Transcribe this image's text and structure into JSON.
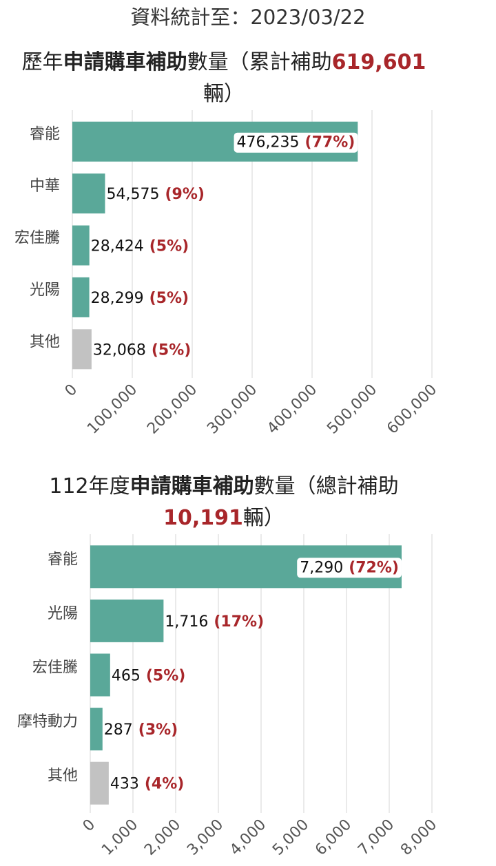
{
  "header": {
    "stats_date": "資料統計至：2023/03/22"
  },
  "chart_data": [
    {
      "type": "bar",
      "orientation": "horizontal",
      "title_parts": [
        {
          "text": "歷年",
          "style": "normal"
        },
        {
          "text": "申請購車補助",
          "style": "bold"
        },
        {
          "text": "數量（累計補助",
          "style": "normal"
        },
        {
          "text": "619,601",
          "style": "highlight"
        },
        {
          "text": "輛）",
          "style": "normal"
        }
      ],
      "categories": [
        "睿能",
        "中華",
        "宏佳騰",
        "光陽",
        "其他"
      ],
      "values": [
        476235,
        54575,
        28424,
        28299,
        32068
      ],
      "value_labels": [
        "476,235",
        "54,575",
        "28,424",
        "28,299",
        "32,068"
      ],
      "percent_labels": [
        "(77%)",
        "(9%)",
        "(5%)",
        "(5%)",
        "(5%)"
      ],
      "bar_colors": [
        "#5aa899",
        "#5aa899",
        "#5aa899",
        "#5aa899",
        "#c2c2c2"
      ],
      "xlim": [
        0,
        600000
      ],
      "x_ticks": [
        0,
        100000,
        200000,
        300000,
        400000,
        500000,
        600000
      ],
      "x_tick_labels": [
        "0",
        "100,000",
        "200,000",
        "300,000",
        "400,000",
        "500,000",
        "600,000"
      ],
      "grid": true
    },
    {
      "type": "bar",
      "orientation": "horizontal",
      "title_parts": [
        {
          "text": "112年度",
          "style": "normal"
        },
        {
          "text": "申請購車補助",
          "style": "bold"
        },
        {
          "text": "數量（總計補助",
          "style": "normal"
        },
        {
          "text": "10,191",
          "style": "highlight"
        },
        {
          "text": "輛）",
          "style": "normal"
        }
      ],
      "categories": [
        "睿能",
        "光陽",
        "宏佳騰",
        "摩特動力",
        "其他"
      ],
      "values": [
        7290,
        1716,
        465,
        287,
        433
      ],
      "value_labels": [
        "7,290",
        "1,716",
        "465",
        "287",
        "433"
      ],
      "percent_labels": [
        "(72%)",
        "(17%)",
        "(5%)",
        "(3%)",
        "(4%)"
      ],
      "bar_colors": [
        "#5aa899",
        "#5aa899",
        "#5aa899",
        "#5aa899",
        "#c2c2c2"
      ],
      "xlim": [
        0,
        8000
      ],
      "x_ticks": [
        0,
        1000,
        2000,
        3000,
        4000,
        5000,
        6000,
        7000,
        8000
      ],
      "x_tick_labels": [
        "0",
        "1,000",
        "2,000",
        "3,000",
        "4,000",
        "5,000",
        "6,000",
        "7,000",
        "8,000"
      ],
      "grid": true
    }
  ]
}
